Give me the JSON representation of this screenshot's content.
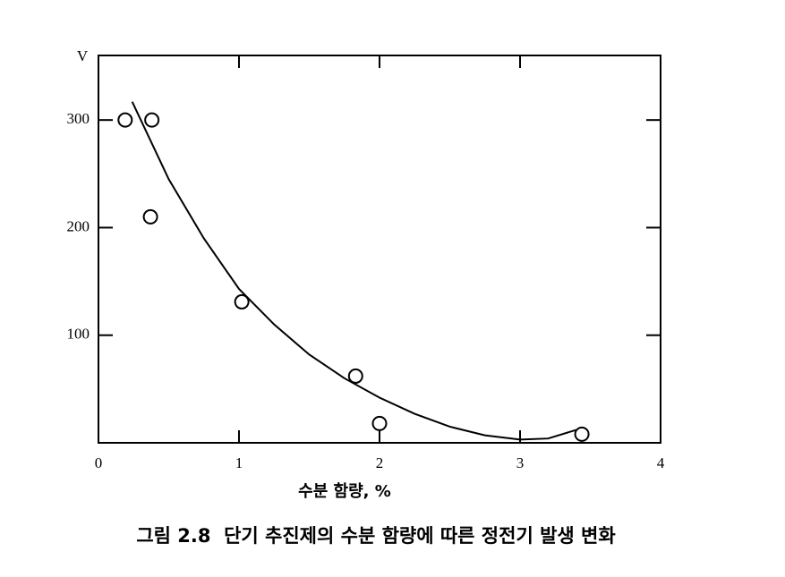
{
  "chart_data": {
    "type": "scatter",
    "ylabel": "V",
    "xlabel": "수분 함량, %",
    "caption": "그림 2.8  단기 추진제의 수분 함량에 따른 정전기 발생 변화",
    "x": [
      0.19,
      0.38,
      0.37,
      1.02,
      1.83,
      2.0,
      3.44
    ],
    "values": [
      300,
      300,
      210,
      131,
      62,
      18,
      8
    ],
    "color": "#000000",
    "curve": {
      "x": [
        0.24,
        0.5,
        0.75,
        1.0,
        1.25,
        1.5,
        1.75,
        2.0,
        2.25,
        2.5,
        2.75,
        3.0,
        3.2,
        3.4
      ],
      "values": [
        317,
        245,
        190,
        143,
        110,
        82,
        60,
        42,
        27,
        15,
        7,
        3,
        4,
        12
      ]
    },
    "xlim": [
      0,
      4
    ],
    "xticks": [
      0,
      1,
      2,
      3,
      4
    ],
    "ylim": [
      0,
      360
    ],
    "yticks": [
      100,
      200,
      300
    ]
  }
}
